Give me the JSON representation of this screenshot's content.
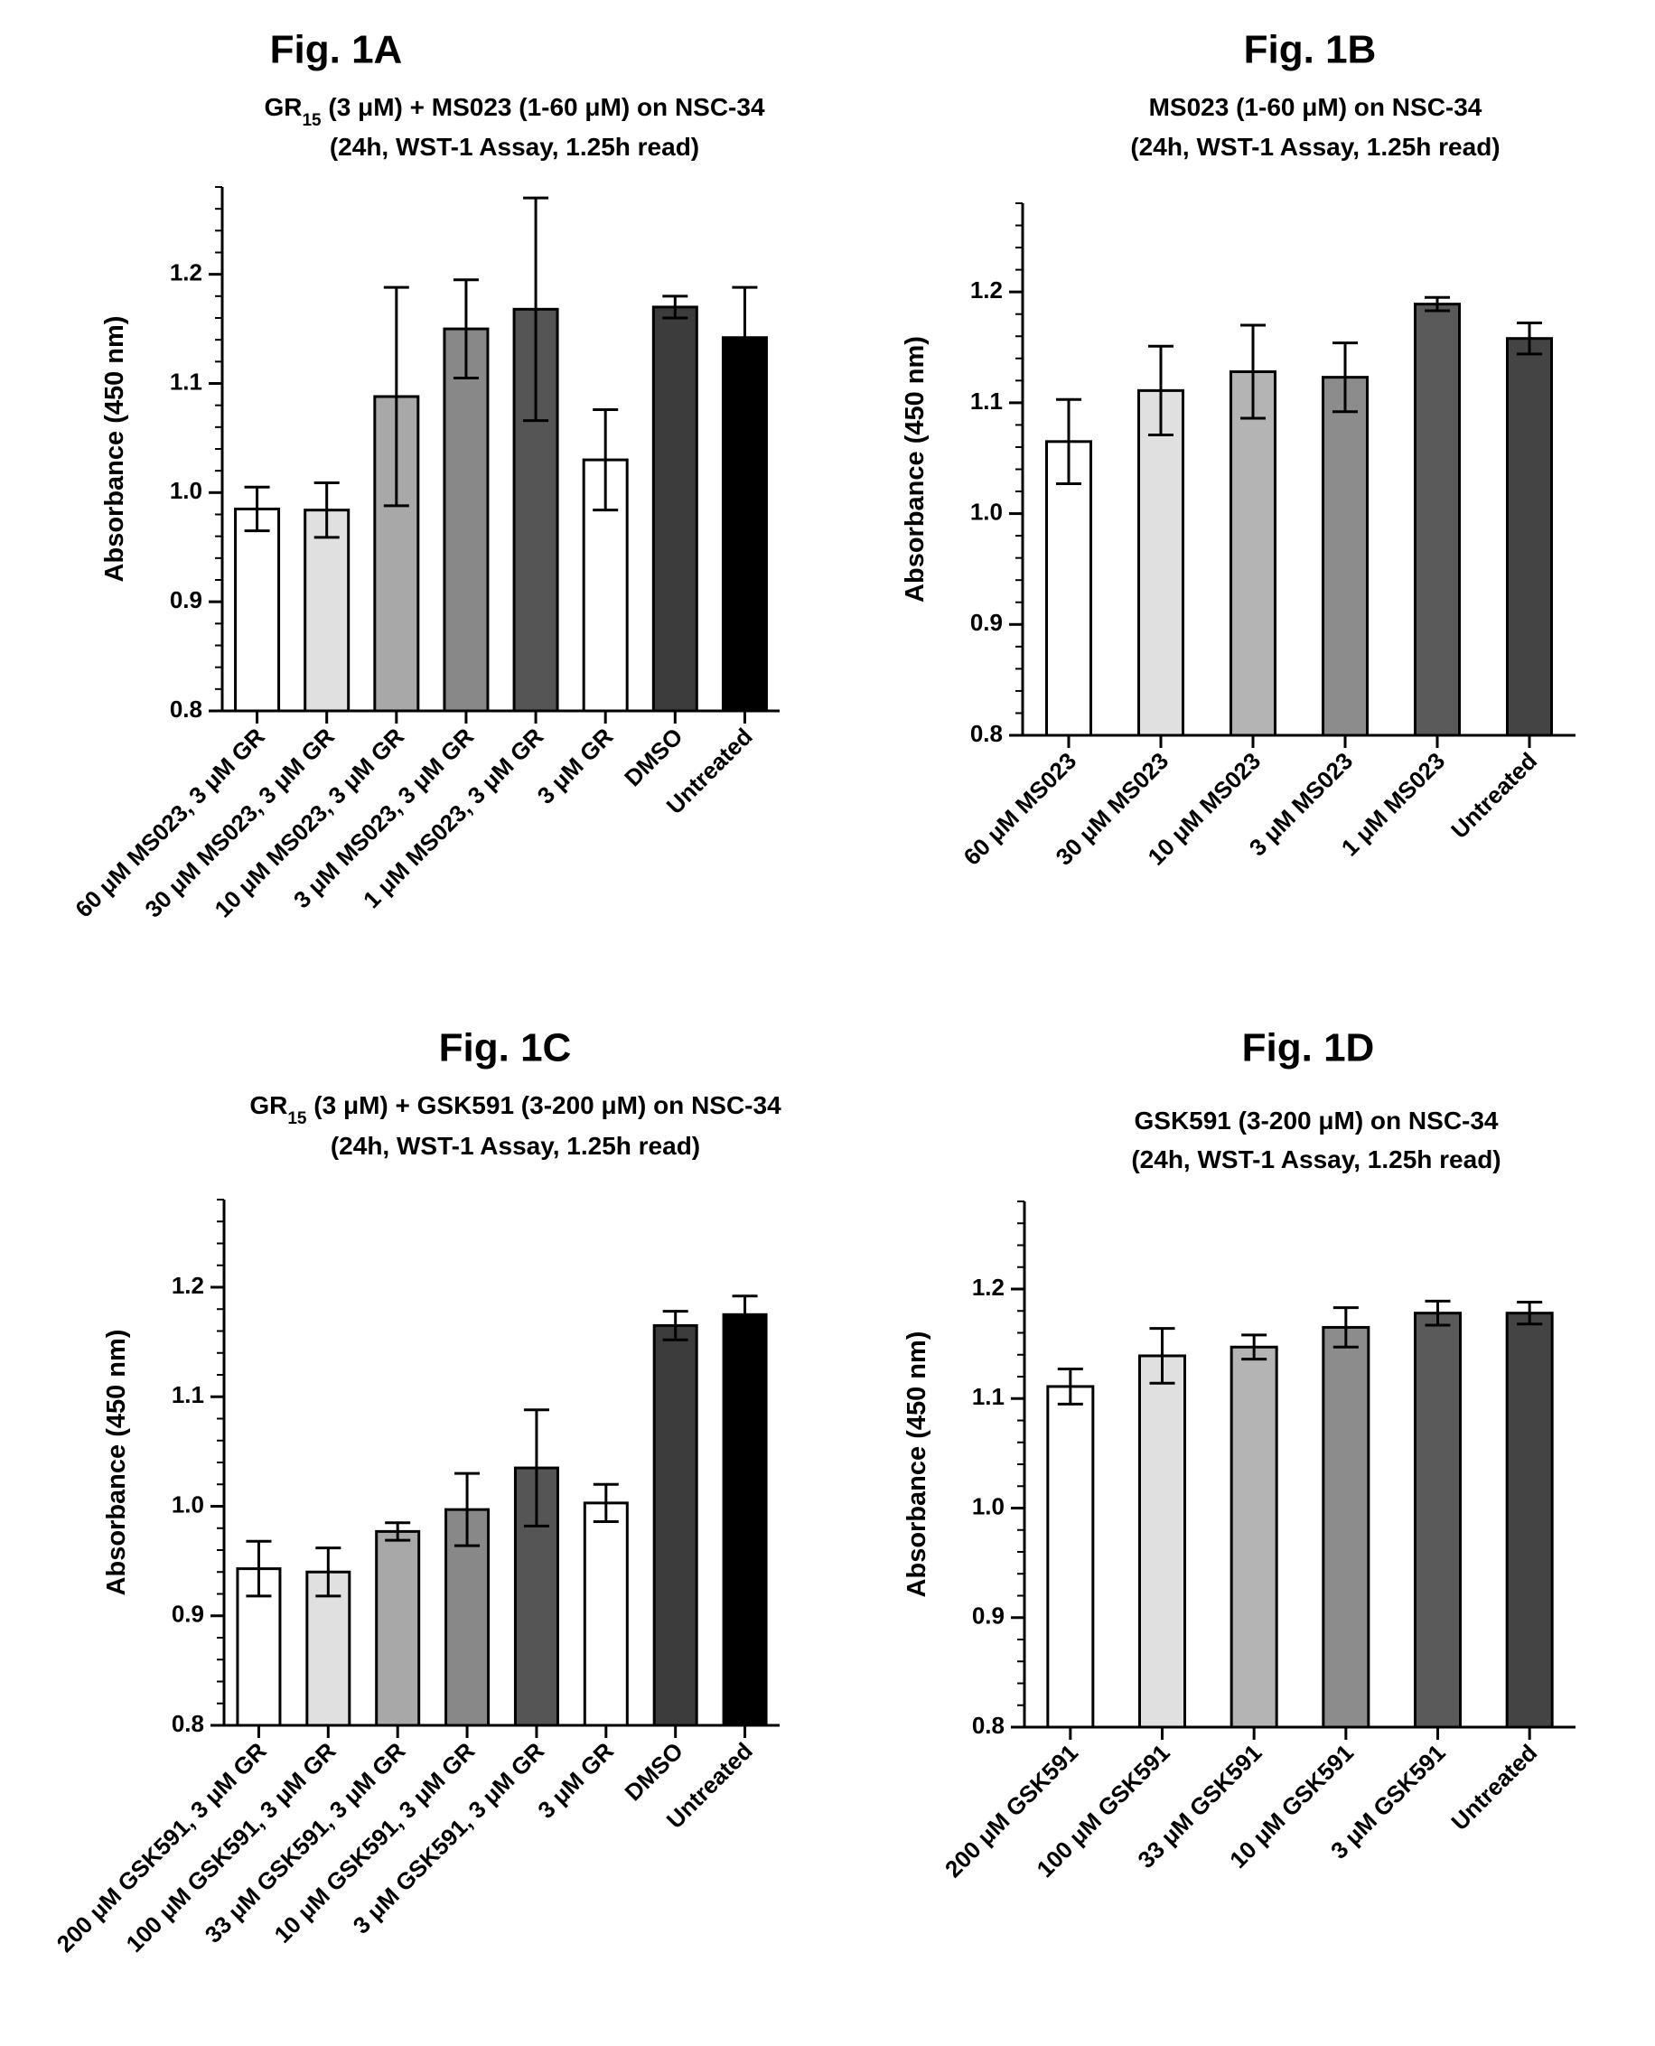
{
  "chart_data": [
    {
      "type": "bar",
      "figure_label": "Fig. 1A",
      "title_parts": [
        "GR",
        "15",
        " (3 μM) + MS023 (1-60 μM) on NSC-34"
      ],
      "subtitle": "(24h, WST-1 Assay, 1.25h read)",
      "ylabel": "Absorbance (450 nm)",
      "xlabel": "",
      "ylim": [
        0.8,
        1.28
      ],
      "yticks": [
        "0.8",
        "0.9",
        "1.0",
        "1.1",
        "1.2"
      ],
      "tick_values": [
        0.8,
        0.9,
        1.0,
        1.1,
        1.2
      ],
      "grid": false,
      "categories": [
        "60 μM MS023, 3 μM GR",
        "30 μM MS023, 3 μM GR",
        "10 μM MS023, 3 μM GR",
        "3 μM MS023, 3 μM GR",
        "1 μM MS023, 3 μM GR",
        "3 μM GR",
        "DMSO",
        "Untreated"
      ],
      "values": [
        0.985,
        0.984,
        1.088,
        1.15,
        1.168,
        1.03,
        1.17,
        1.142
      ],
      "errors": [
        0.02,
        0.025,
        0.1,
        0.045,
        0.102,
        0.046,
        0.01,
        0.046
      ],
      "colors": [
        "#ffffff",
        "#e0e0e0",
        "#a8a8a8",
        "#888888",
        "#555555",
        "#ffffff",
        "#3c3c3c",
        "#000000"
      ]
    },
    {
      "type": "bar",
      "figure_label": "Fig. 1B",
      "title_parts": [
        "MS023 (1-60 μM) on NSC-34"
      ],
      "subtitle": "(24h, WST-1 Assay, 1.25h read)",
      "ylabel": "Absorbance (450 nm)",
      "xlabel": "",
      "ylim": [
        0.8,
        1.28
      ],
      "yticks": [
        "0.8",
        "0.9",
        "1.0",
        "1.1",
        "1.2"
      ],
      "tick_values": [
        0.8,
        0.9,
        1.0,
        1.1,
        1.2
      ],
      "grid": false,
      "categories": [
        "60 μM MS023",
        "30 μM MS023",
        "10 μM MS023",
        "3 μM MS023",
        "1 μM MS023",
        "Untreated"
      ],
      "values": [
        1.065,
        1.111,
        1.128,
        1.123,
        1.189,
        1.158
      ],
      "errors": [
        0.038,
        0.04,
        0.042,
        0.031,
        0.006,
        0.014
      ],
      "colors": [
        "#ffffff",
        "#e0e0e0",
        "#b4b4b4",
        "#8c8c8c",
        "#5a5a5a",
        "#444444"
      ]
    },
    {
      "type": "bar",
      "figure_label": "Fig. 1C",
      "title_parts": [
        "GR",
        "15",
        " (3 μM) + GSK591 (3-200 μM) on NSC-34"
      ],
      "subtitle": "(24h, WST-1 Assay, 1.25h read)",
      "ylabel": "Absorbance (450 nm)",
      "xlabel": "",
      "ylim": [
        0.8,
        1.28
      ],
      "yticks": [
        "0.8",
        "0.9",
        "1.0",
        "1.1",
        "1.2"
      ],
      "tick_values": [
        0.8,
        0.9,
        1.0,
        1.1,
        1.2
      ],
      "grid": false,
      "categories": [
        "200 μM GSK591, 3 μM GR",
        "100 μM GSK591, 3 μM GR",
        "33 μM GSK591, 3 μM GR",
        "10 μM GSK591, 3 μM GR",
        "3 μM GSK591, 3 μM GR",
        "3 μM GR",
        "DMSO",
        "Untreated"
      ],
      "values": [
        0.943,
        0.94,
        0.977,
        0.997,
        1.035,
        1.003,
        1.165,
        1.175
      ],
      "errors": [
        0.025,
        0.022,
        0.008,
        0.033,
        0.053,
        0.017,
        0.013,
        0.017
      ],
      "colors": [
        "#ffffff",
        "#e0e0e0",
        "#a8a8a8",
        "#888888",
        "#555555",
        "#ffffff",
        "#3c3c3c",
        "#000000"
      ]
    },
    {
      "type": "bar",
      "figure_label": "Fig. 1D",
      "title_parts": [
        "GSK591 (3-200 μM) on NSC-34"
      ],
      "subtitle": "(24h, WST-1 Assay, 1.25h read)",
      "ylabel": "Absorbance (450 nm)",
      "xlabel": "",
      "ylim": [
        0.8,
        1.28
      ],
      "yticks": [
        "0.8",
        "0.9",
        "1.0",
        "1.1",
        "1.2"
      ],
      "tick_values": [
        0.8,
        0.9,
        1.0,
        1.1,
        1.2
      ],
      "grid": false,
      "categories": [
        "200 μM GSK591",
        "100 μM GSK591",
        "33 μM GSK591",
        "10 μM GSK591",
        "3 μM GSK591",
        "Untreated"
      ],
      "values": [
        1.111,
        1.139,
        1.147,
        1.165,
        1.178,
        1.178
      ],
      "errors": [
        0.016,
        0.025,
        0.011,
        0.018,
        0.011,
        0.01
      ],
      "colors": [
        "#ffffff",
        "#e0e0e0",
        "#b4b4b4",
        "#8c8c8c",
        "#5a5a5a",
        "#444444"
      ]
    }
  ]
}
